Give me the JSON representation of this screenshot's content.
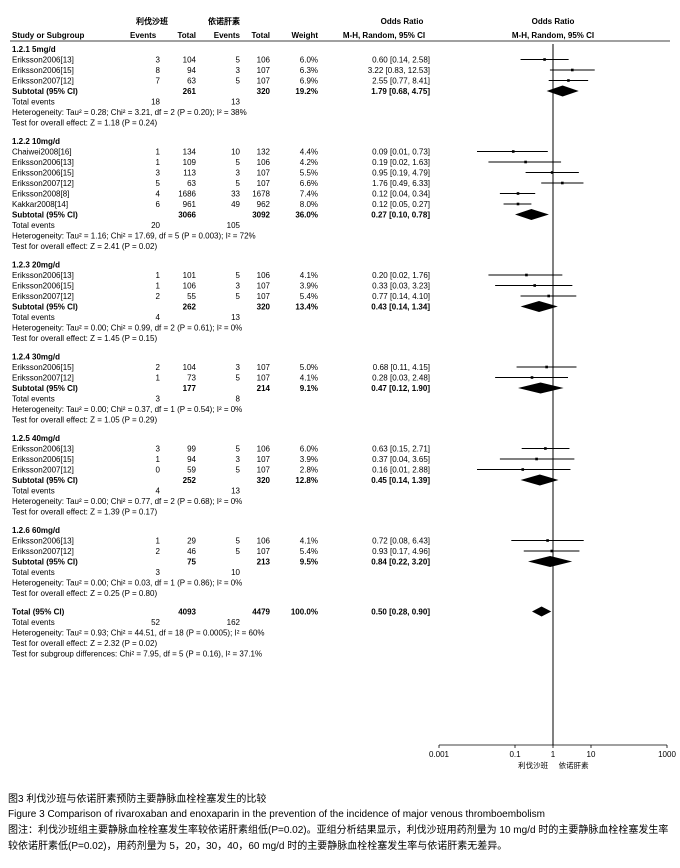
{
  "header": {
    "group_left": "利伐沙班",
    "group_right": "依诺肝素",
    "study_col": "Study or Subgroup",
    "events_left": "Events",
    "total_left": "Total",
    "events_right": "Events",
    "total_right": "Total",
    "weight": "Weight",
    "or_title": "Odds Ratio",
    "or_method": "M-H, Random, 95% CI",
    "plot_title": "Odds Ratio",
    "plot_method": "M-H, Random, 95% CI"
  },
  "rows": [
    {
      "kind": "group",
      "text": "1.2.1 5mg/d"
    },
    {
      "kind": "study",
      "name": "Eriksson2006[13]",
      "e1": "3",
      "t1": "104",
      "e2": "5",
      "t2": "106",
      "w": "6.0%",
      "ci": "0.60 [0.14, 2.58]",
      "est": 0.6,
      "lo": 0.14,
      "hi": 2.58
    },
    {
      "kind": "study",
      "name": "Eriksson2006[15]",
      "e1": "8",
      "t1": "94",
      "e2": "3",
      "t2": "107",
      "w": "6.3%",
      "ci": "3.22 [0.83, 12.53]",
      "est": 3.22,
      "lo": 0.83,
      "hi": 12.53
    },
    {
      "kind": "study",
      "name": "Eriksson2007[12]",
      "e1": "7",
      "t1": "63",
      "e2": "5",
      "t2": "107",
      "w": "6.9%",
      "ci": "2.55 [0.77, 8.41]",
      "est": 2.55,
      "lo": 0.77,
      "hi": 8.41
    },
    {
      "kind": "subtotal",
      "name": "Subtotal (95% CI)",
      "t1": "261",
      "t2": "320",
      "w": "19.2%",
      "ci": "1.79 [0.68, 4.75]",
      "est": 1.79,
      "lo": 0.68,
      "hi": 4.75
    },
    {
      "kind": "events",
      "name": "Total events",
      "e1": "18",
      "e2": "13"
    },
    {
      "kind": "text",
      "text": "Heterogeneity: Tau² = 0.28; Chi² = 3.21, df = 2 (P = 0.20); I² = 38%"
    },
    {
      "kind": "text",
      "text": "Test for overall effect: Z = 1.18 (P = 0.24)"
    },
    {
      "kind": "gap"
    },
    {
      "kind": "group",
      "text": "1.2.2 10mg/d"
    },
    {
      "kind": "study",
      "name": "Chaiwei2008[16]",
      "e1": "1",
      "t1": "134",
      "e2": "10",
      "t2": "132",
      "w": "4.4%",
      "ci": "0.09 [0.01, 0.73]",
      "est": 0.09,
      "lo": 0.01,
      "hi": 0.73
    },
    {
      "kind": "study",
      "name": "Eriksson2006[13]",
      "e1": "1",
      "t1": "109",
      "e2": "5",
      "t2": "106",
      "w": "4.2%",
      "ci": "0.19 [0.02, 1.63]",
      "est": 0.19,
      "lo": 0.02,
      "hi": 1.63
    },
    {
      "kind": "study",
      "name": "Eriksson2006[15]",
      "e1": "3",
      "t1": "113",
      "e2": "3",
      "t2": "107",
      "w": "5.5%",
      "ci": "0.95 [0.19, 4.79]",
      "est": 0.95,
      "lo": 0.19,
      "hi": 4.79
    },
    {
      "kind": "study",
      "name": "Eriksson2007[12]",
      "e1": "5",
      "t1": "63",
      "e2": "5",
      "t2": "107",
      "w": "6.6%",
      "ci": "1.76 [0.49, 6.33]",
      "est": 1.76,
      "lo": 0.49,
      "hi": 6.33
    },
    {
      "kind": "study",
      "name": "Eriksson2008[8]",
      "e1": "4",
      "t1": "1686",
      "e2": "33",
      "t2": "1678",
      "w": "7.4%",
      "ci": "0.12 [0.04, 0.34]",
      "est": 0.12,
      "lo": 0.04,
      "hi": 0.34
    },
    {
      "kind": "study",
      "name": "Kakkar2008[14]",
      "e1": "6",
      "t1": "961",
      "e2": "49",
      "t2": "962",
      "w": "8.0%",
      "ci": "0.12 [0.05, 0.27]",
      "est": 0.12,
      "lo": 0.05,
      "hi": 0.27
    },
    {
      "kind": "subtotal",
      "name": "Subtotal (95% CI)",
      "t1": "3066",
      "t2": "3092",
      "w": "36.0%",
      "ci": "0.27 [0.10, 0.78]",
      "est": 0.27,
      "lo": 0.1,
      "hi": 0.78
    },
    {
      "kind": "events",
      "name": "Total events",
      "e1": "20",
      "e2": "105"
    },
    {
      "kind": "text",
      "text": "Heterogeneity: Tau² = 1.16; Chi² = 17.69, df = 5 (P = 0.003); I² = 72%"
    },
    {
      "kind": "text",
      "text": "Test for overall effect: Z = 2.41 (P = 0.02)"
    },
    {
      "kind": "gap"
    },
    {
      "kind": "group",
      "text": "1.2.3 20mg/d"
    },
    {
      "kind": "study",
      "name": "Eriksson2006[13]",
      "e1": "1",
      "t1": "101",
      "e2": "5",
      "t2": "106",
      "w": "4.1%",
      "ci": "0.20 [0.02, 1.76]",
      "est": 0.2,
      "lo": 0.02,
      "hi": 1.76
    },
    {
      "kind": "study",
      "name": "Eriksson2006[15]",
      "e1": "1",
      "t1": "106",
      "e2": "3",
      "t2": "107",
      "w": "3.9%",
      "ci": "0.33 [0.03, 3.23]",
      "est": 0.33,
      "lo": 0.03,
      "hi": 3.23
    },
    {
      "kind": "study",
      "name": "Eriksson2007[12]",
      "e1": "2",
      "t1": "55",
      "e2": "5",
      "t2": "107",
      "w": "5.4%",
      "ci": "0.77 [0.14, 4.10]",
      "est": 0.77,
      "lo": 0.14,
      "hi": 4.1
    },
    {
      "kind": "subtotal",
      "name": "Subtotal (95% CI)",
      "t1": "262",
      "t2": "320",
      "w": "13.4%",
      "ci": "0.43 [0.14, 1.34]",
      "est": 0.43,
      "lo": 0.14,
      "hi": 1.34
    },
    {
      "kind": "events",
      "name": "Total events",
      "e1": "4",
      "e2": "13"
    },
    {
      "kind": "text",
      "text": "Heterogeneity: Tau² = 0.00; Chi² = 0.99, df = 2 (P = 0.61); I² = 0%"
    },
    {
      "kind": "text",
      "text": "Test for overall effect: Z = 1.45 (P = 0.15)"
    },
    {
      "kind": "gap"
    },
    {
      "kind": "group",
      "text": "1.2.4 30mg/d"
    },
    {
      "kind": "study",
      "name": "Eriksson2006[15]",
      "e1": "2",
      "t1": "104",
      "e2": "3",
      "t2": "107",
      "w": "5.0%",
      "ci": "0.68 [0.11, 4.15]",
      "est": 0.68,
      "lo": 0.11,
      "hi": 4.15
    },
    {
      "kind": "study",
      "name": "Eriksson2007[12]",
      "e1": "1",
      "t1": "73",
      "e2": "5",
      "t2": "107",
      "w": "4.1%",
      "ci": "0.28 [0.03, 2.48]",
      "est": 0.28,
      "lo": 0.03,
      "hi": 2.48
    },
    {
      "kind": "subtotal",
      "name": "Subtotal (95% CI)",
      "t1": "177",
      "t2": "214",
      "w": "9.1%",
      "ci": "0.47 [0.12, 1.90]",
      "est": 0.47,
      "lo": 0.12,
      "hi": 1.9
    },
    {
      "kind": "events",
      "name": "Total events",
      "e1": "3",
      "e2": "8"
    },
    {
      "kind": "text",
      "text": "Heterogeneity: Tau² = 0.00; Chi² = 0.37, df = 1 (P = 0.54); I² = 0%"
    },
    {
      "kind": "text",
      "text": "Test for overall effect: Z = 1.05 (P = 0.29)"
    },
    {
      "kind": "gap"
    },
    {
      "kind": "group",
      "text": "1.2.5 40mg/d"
    },
    {
      "kind": "study",
      "name": "Eriksson2006[13]",
      "e1": "3",
      "t1": "99",
      "e2": "5",
      "t2": "106",
      "w": "6.0%",
      "ci": "0.63 [0.15, 2.71]",
      "est": 0.63,
      "lo": 0.15,
      "hi": 2.71
    },
    {
      "kind": "study",
      "name": "Eriksson2006[15]",
      "e1": "1",
      "t1": "94",
      "e2": "3",
      "t2": "107",
      "w": "3.9%",
      "ci": "0.37 [0.04, 3.65]",
      "est": 0.37,
      "lo": 0.04,
      "hi": 3.65
    },
    {
      "kind": "study",
      "name": "Eriksson2007[12]",
      "e1": "0",
      "t1": "59",
      "e2": "5",
      "t2": "107",
      "w": "2.8%",
      "ci": "0.16 [0.01, 2.88]",
      "est": 0.16,
      "lo": 0.01,
      "hi": 2.88
    },
    {
      "kind": "subtotal",
      "name": "Subtotal (95% CI)",
      "t1": "252",
      "t2": "320",
      "w": "12.8%",
      "ci": "0.45 [0.14, 1.39]",
      "est": 0.45,
      "lo": 0.14,
      "hi": 1.39
    },
    {
      "kind": "events",
      "name": "Total events",
      "e1": "4",
      "e2": "13"
    },
    {
      "kind": "text",
      "text": "Heterogeneity: Tau² = 0.00; Chi² = 0.77, df = 2 (P = 0.68); I² = 0%"
    },
    {
      "kind": "text",
      "text": "Test for overall effect: Z = 1.39 (P = 0.17)"
    },
    {
      "kind": "gap"
    },
    {
      "kind": "group",
      "text": "1.2.6 60mg/d"
    },
    {
      "kind": "study",
      "name": "Eriksson2006[13]",
      "e1": "1",
      "t1": "29",
      "e2": "5",
      "t2": "106",
      "w": "4.1%",
      "ci": "0.72 [0.08, 6.43]",
      "est": 0.72,
      "lo": 0.08,
      "hi": 6.43
    },
    {
      "kind": "study",
      "name": "Eriksson2007[12]",
      "e1": "2",
      "t1": "46",
      "e2": "5",
      "t2": "107",
      "w": "5.4%",
      "ci": "0.93 [0.17, 4.96]",
      "est": 0.93,
      "lo": 0.17,
      "hi": 4.96
    },
    {
      "kind": "subtotal",
      "name": "Subtotal (95% CI)",
      "t1": "75",
      "t2": "213",
      "w": "9.5%",
      "ci": "0.84 [0.22, 3.20]",
      "est": 0.84,
      "lo": 0.22,
      "hi": 3.2
    },
    {
      "kind": "events",
      "name": "Total events",
      "e1": "3",
      "e2": "10"
    },
    {
      "kind": "text",
      "text": "Heterogeneity: Tau² = 0.00; Chi² = 0.03, df = 1 (P = 0.86); I² = 0%"
    },
    {
      "kind": "text",
      "text": "Test for overall effect: Z = 0.25 (P = 0.80)"
    },
    {
      "kind": "gap"
    },
    {
      "kind": "total",
      "name": "Total (95% CI)",
      "t1": "4093",
      "t2": "4479",
      "w": "100.0%",
      "ci": "0.50 [0.28, 0.90]",
      "est": 0.5,
      "lo": 0.28,
      "hi": 0.9
    },
    {
      "kind": "events",
      "name": "Total events",
      "e1": "52",
      "e2": "162"
    },
    {
      "kind": "text",
      "text": "Heterogeneity: Tau² = 0.93; Chi² = 44.51, df = 18 (P = 0.0005); I² = 60%"
    },
    {
      "kind": "text",
      "text": "Test for overall effect: Z = 2.32 (P = 0.02)"
    },
    {
      "kind": "text",
      "text": "Test for subgroup differences: Chi² = 7.95, df = 5 (P = 0.16), I² = 37.1%"
    }
  ],
  "chart_data": {
    "type": "forest",
    "xscale": "log",
    "xlim": [
      0.001,
      1000
    ],
    "x_ticks": [
      "0.001",
      "0.1",
      "1",
      "10",
      "1000"
    ],
    "x_tick_values": [
      0.001,
      0.1,
      1,
      10,
      1000
    ],
    "axis_label_left": "利伐沙班",
    "axis_label_right": "依诺肝素",
    "reference_line": 1
  },
  "caption": {
    "title": "图3   利伐沙班与依诺肝素预防主要静脉血栓栓塞发生的比较",
    "english": "Figure 3   Comparison of rivaroxaban and enoxaparin in the prevention of the incidence of major venous thromboembolism",
    "note": "图注：利伐沙班组主要静脉血栓栓塞发生率较依诺肝素组低(P=0.02)。亚组分析结果显示，利伐沙班用药剂量为 10 mg/d 时的主要静脉血栓栓塞发生率较依诺肝素低(P=0.02)，用药剂量为 5，20，30，40，60 mg/d 时的主要静脉血栓栓塞发生率与依诺肝素无差异。"
  }
}
